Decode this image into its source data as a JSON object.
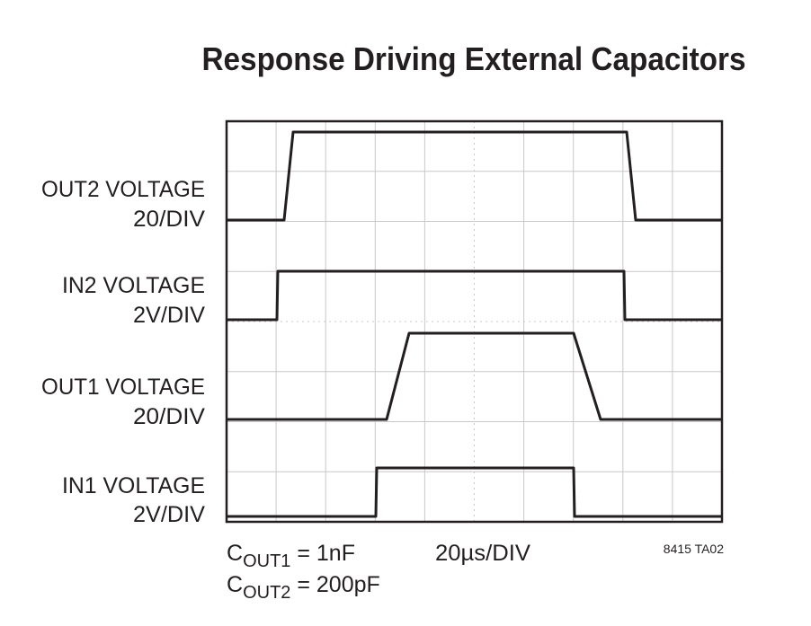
{
  "header": {
    "title": "Response Driving External Capacitors"
  },
  "traces": [
    {
      "name": "OUT2 VOLTAGE",
      "scale": "20/DIV"
    },
    {
      "name": "IN2 VOLTAGE",
      "scale": "2V/DIV"
    },
    {
      "name": "OUT1 VOLTAGE",
      "scale": "20/DIV"
    },
    {
      "name": "IN1 VOLTAGE",
      "scale": "2V/DIV"
    }
  ],
  "notes": {
    "capacitors": [
      {
        "symbol": "C",
        "subscript": "OUT1",
        "value": " = 1nF"
      },
      {
        "symbol": "C",
        "subscript": "OUT2",
        "value": " = 200pF"
      }
    ],
    "time_scale": "20µs/DIV",
    "figure_id": "8415 TA02"
  }
}
